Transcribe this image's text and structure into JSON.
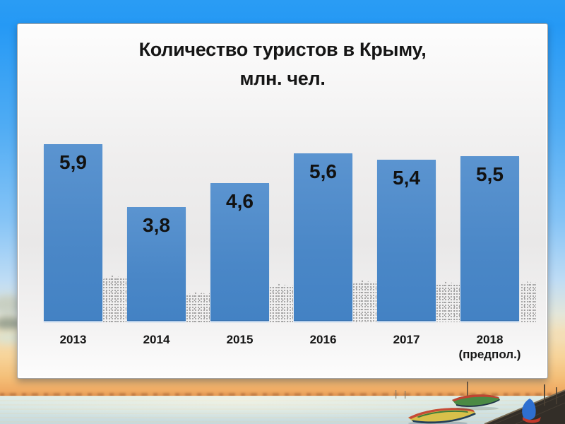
{
  "slide": {
    "title_line1": "Количество туристов в Крыму,",
    "title_line2": "млн. чел."
  },
  "chart_data": {
    "type": "bar",
    "title": "Количество туристов в Крыму, млн. чел.",
    "categories": [
      "2013",
      "2014",
      "2015",
      "2016",
      "2017",
      "2018"
    ],
    "category_notes": [
      "",
      "",
      "",
      "",
      "",
      "(предпол.)"
    ],
    "values": [
      5.9,
      3.8,
      4.6,
      5.6,
      5.4,
      5.5
    ],
    "value_labels": [
      "5,9",
      "3,8",
      "4,6",
      "5,6",
      "5,4",
      "5,5"
    ],
    "xlabel": "",
    "ylabel": "",
    "ylim": [
      0,
      6.2
    ],
    "unit": "млн. чел.",
    "grid": false,
    "legend": false,
    "bar_color": "#4e8ac8",
    "label_color": "#121212"
  },
  "colors": {
    "sky_blue": "#2a9cf4",
    "sunset_orange": "#efa861",
    "card_background": "#ececec",
    "bar_blue": "#4e8ac8",
    "text_black": "#151515"
  }
}
